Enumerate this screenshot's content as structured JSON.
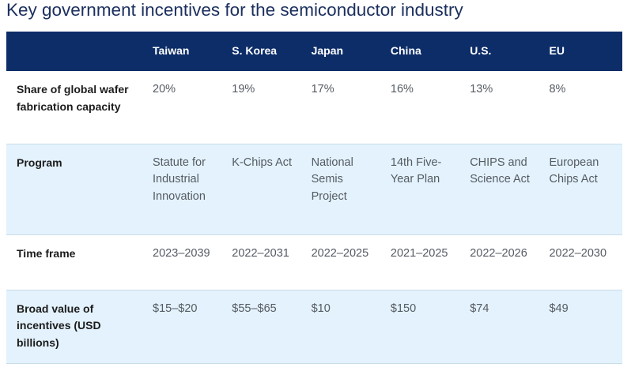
{
  "title": "Key government incentives for the semiconductor industry",
  "columns": [
    "Taiwan",
    "S. Korea",
    "Japan",
    "China",
    "U.S.",
    "EU"
  ],
  "rows": [
    {
      "label": "Share of global wafer fabrication capacity",
      "values": [
        "20%",
        "19%",
        "17%",
        "16%",
        "13%",
        "8%"
      ]
    },
    {
      "label": "Program",
      "values": [
        "Statute for Industrial Innovation",
        "K-Chips Act",
        "National Semis Project",
        "14th Five-Year Plan",
        "CHIPS and Science Act",
        "European Chips Act"
      ]
    },
    {
      "label": "Time frame",
      "values": [
        "2023–2039",
        "2022–2031",
        "2022–2025",
        "2021–2025",
        "2022–2026",
        "2022–2030"
      ]
    },
    {
      "label": "Broad value of incentives (USD billions)",
      "values": [
        "$15–$20",
        "$55–$65",
        "$10",
        "$150",
        "$74",
        "$49"
      ]
    }
  ],
  "colors": {
    "header_bg": "#0d2d68",
    "title": "#1b2f5e",
    "stripe": "#e3f2fc"
  }
}
